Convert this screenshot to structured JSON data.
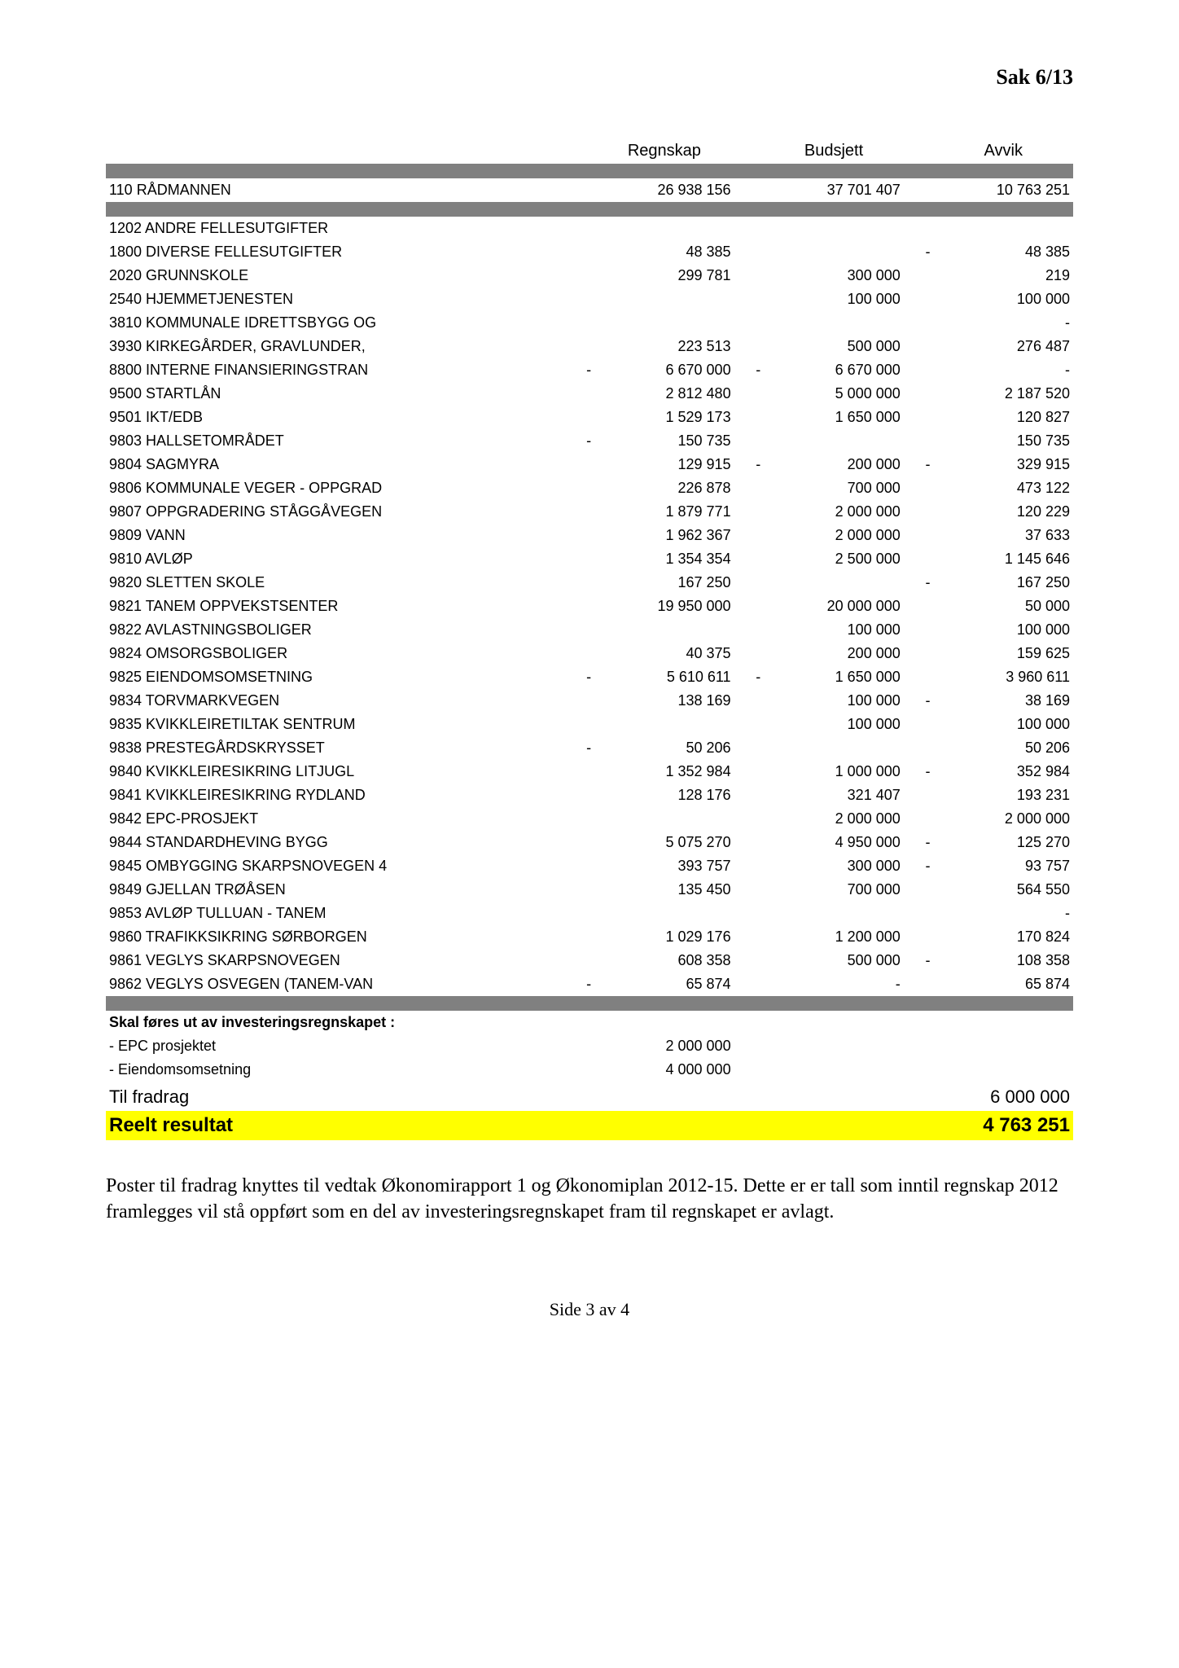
{
  "header": {
    "title": "Sak 6/13"
  },
  "columns": {
    "c1": "Regnskap",
    "c2": "Budsjett",
    "c3": "Avvik"
  },
  "main_row": {
    "label": "110 RÅDMANNEN",
    "regnskap": "26 938 156",
    "budsjett": "37 701 407",
    "avvik": "10 763 251"
  },
  "rows": [
    {
      "label": "1202 ANDRE FELLESUTGIFTER",
      "r_sign": "",
      "r": "",
      "b_sign": "",
      "b": "",
      "a_sign": "",
      "a": ""
    },
    {
      "label": "1800 DIVERSE FELLESUTGIFTER",
      "r_sign": "",
      "r": "48 385",
      "b_sign": "",
      "b": "",
      "a_sign": "-",
      "a": "48 385"
    },
    {
      "label": "2020 GRUNNSKOLE",
      "r_sign": "",
      "r": "299 781",
      "b_sign": "",
      "b": "300 000",
      "a_sign": "",
      "a": "219"
    },
    {
      "label": "2540 HJEMMETJENESTEN",
      "r_sign": "",
      "r": "",
      "b_sign": "",
      "b": "100 000",
      "a_sign": "",
      "a": "100 000"
    },
    {
      "label": "3810 KOMMUNALE IDRETTSBYGG OG",
      "r_sign": "",
      "r": "",
      "b_sign": "",
      "b": "",
      "a_sign": "",
      "a": "-"
    },
    {
      "label": "3930 KIRKEGÅRDER, GRAVLUNDER,",
      "r_sign": "",
      "r": "223 513",
      "b_sign": "",
      "b": "500 000",
      "a_sign": "",
      "a": "276 487"
    },
    {
      "label": "8800 INTERNE FINANSIERINGSTRAN",
      "r_sign": "-",
      "r": "6 670 000",
      "b_sign": "-",
      "b": "6 670 000",
      "a_sign": "",
      "a": "-"
    },
    {
      "label": "9500 STARTLÅN",
      "r_sign": "",
      "r": "2 812 480",
      "b_sign": "",
      "b": "5 000 000",
      "a_sign": "",
      "a": "2 187 520"
    },
    {
      "label": "9501 IKT/EDB",
      "r_sign": "",
      "r": "1 529 173",
      "b_sign": "",
      "b": "1 650 000",
      "a_sign": "",
      "a": "120 827"
    },
    {
      "label": "9803 HALLSETOMRÅDET",
      "r_sign": "-",
      "r": "150 735",
      "b_sign": "",
      "b": "",
      "a_sign": "",
      "a": "150 735"
    },
    {
      "label": "9804 SAGMYRA",
      "r_sign": "",
      "r": "129 915",
      "b_sign": "-",
      "b": "200 000",
      "a_sign": "-",
      "a": "329 915"
    },
    {
      "label": "9806 KOMMUNALE VEGER - OPPGRAD",
      "r_sign": "",
      "r": "226 878",
      "b_sign": "",
      "b": "700 000",
      "a_sign": "",
      "a": "473 122"
    },
    {
      "label": "9807 OPPGRADERING STÅGGÅVEGEN",
      "r_sign": "",
      "r": "1 879 771",
      "b_sign": "",
      "b": "2 000 000",
      "a_sign": "",
      "a": "120 229"
    },
    {
      "label": "9809 VANN",
      "r_sign": "",
      "r": "1 962 367",
      "b_sign": "",
      "b": "2 000 000",
      "a_sign": "",
      "a": "37 633"
    },
    {
      "label": "9810 AVLØP",
      "r_sign": "",
      "r": "1 354 354",
      "b_sign": "",
      "b": "2 500 000",
      "a_sign": "",
      "a": "1 145 646"
    },
    {
      "label": "9820 SLETTEN SKOLE",
      "r_sign": "",
      "r": "167 250",
      "b_sign": "",
      "b": "",
      "a_sign": "-",
      "a": "167 250"
    },
    {
      "label": "9821 TANEM OPPVEKSTSENTER",
      "r_sign": "",
      "r": "19 950 000",
      "b_sign": "",
      "b": "20 000 000",
      "a_sign": "",
      "a": "50 000"
    },
    {
      "label": "9822 AVLASTNINGSBOLIGER",
      "r_sign": "",
      "r": "",
      "b_sign": "",
      "b": "100 000",
      "a_sign": "",
      "a": "100 000"
    },
    {
      "label": "9824 OMSORGSBOLIGER",
      "r_sign": "",
      "r": "40 375",
      "b_sign": "",
      "b": "200 000",
      "a_sign": "",
      "a": "159 625"
    },
    {
      "label": "9825 EIENDOMSOMSETNING",
      "r_sign": "-",
      "r": "5 610 611",
      "b_sign": "-",
      "b": "1 650 000",
      "a_sign": "",
      "a": "3 960 611"
    },
    {
      "label": "9834 TORVMARKVEGEN",
      "r_sign": "",
      "r": "138 169",
      "b_sign": "",
      "b": "100 000",
      "a_sign": "-",
      "a": "38 169"
    },
    {
      "label": "9835 KVIKKLEIRETILTAK SENTRUM",
      "r_sign": "",
      "r": "",
      "b_sign": "",
      "b": "100 000",
      "a_sign": "",
      "a": "100 000"
    },
    {
      "label": "9838 PRESTEGÅRDSKRYSSET",
      "r_sign": "-",
      "r": "50 206",
      "b_sign": "",
      "b": "",
      "a_sign": "",
      "a": "50 206"
    },
    {
      "label": "9840 KVIKKLEIRESIKRING LITJUGL",
      "r_sign": "",
      "r": "1 352 984",
      "b_sign": "",
      "b": "1 000 000",
      "a_sign": "-",
      "a": "352 984"
    },
    {
      "label": "9841 KVIKKLEIRESIKRING RYDLAND",
      "r_sign": "",
      "r": "128 176",
      "b_sign": "",
      "b": "321 407",
      "a_sign": "",
      "a": "193 231"
    },
    {
      "label": "9842 EPC-PROSJEKT",
      "r_sign": "",
      "r": "",
      "b_sign": "",
      "b": "2 000 000",
      "a_sign": "",
      "a": "2 000 000"
    },
    {
      "label": "9844 STANDARDHEVING BYGG",
      "r_sign": "",
      "r": "5 075 270",
      "b_sign": "",
      "b": "4 950 000",
      "a_sign": "-",
      "a": "125 270"
    },
    {
      "label": "9845 OMBYGGING SKARPSNOVEGEN 4",
      "r_sign": "",
      "r": "393 757",
      "b_sign": "",
      "b": "300 000",
      "a_sign": "-",
      "a": "93 757"
    },
    {
      "label": "9849 GJELLAN TRØÅSEN",
      "r_sign": "",
      "r": "135 450",
      "b_sign": "",
      "b": "700 000",
      "a_sign": "",
      "a": "564 550"
    },
    {
      "label": "9853 AVLØP TULLUAN - TANEM",
      "r_sign": "",
      "r": "",
      "b_sign": "",
      "b": "",
      "a_sign": "",
      "a": "-"
    },
    {
      "label": "9860 TRAFIKKSIKRING SØRBORGEN",
      "r_sign": "",
      "r": "1 029 176",
      "b_sign": "",
      "b": "1 200 000",
      "a_sign": "",
      "a": "170 824"
    },
    {
      "label": "9861 VEGLYS SKARPSNOVEGEN",
      "r_sign": "",
      "r": "608 358",
      "b_sign": "",
      "b": "500 000",
      "a_sign": "-",
      "a": "108 358"
    },
    {
      "label": "9862 VEGLYS OSVEGEN (TANEM-VAN",
      "r_sign": "-",
      "r": "65 874",
      "b_sign": "",
      "b": "-",
      "a_sign": "",
      "a": "65 874"
    }
  ],
  "deduct_header": "Skal føres ut av investeringsregnskapet :",
  "deduct_rows": [
    {
      "label": "- EPC prosjektet",
      "r": "2 000 000"
    },
    {
      "label": "- Eiendomsomsetning",
      "r": "4 000 000"
    }
  ],
  "til_fradrag": {
    "label": "Til fradrag",
    "value": "6 000 000"
  },
  "reelt": {
    "label": "Reelt resultat",
    "value": "4 763 251"
  },
  "body_text": "Poster til fradrag knyttes til vedtak Økonomirapport 1 og Økonomiplan 2012-15. Dette er er tall som inntil regnskap 2012 framlegges vil stå oppført som en del av investeringsregnskapet fram til regnskapet er avlagt.",
  "footer": "Side 3 av 4",
  "styles": {
    "grey": "#808080",
    "yellow": "#ffff00",
    "text": "#000000",
    "page_bg": "#ffffff"
  }
}
